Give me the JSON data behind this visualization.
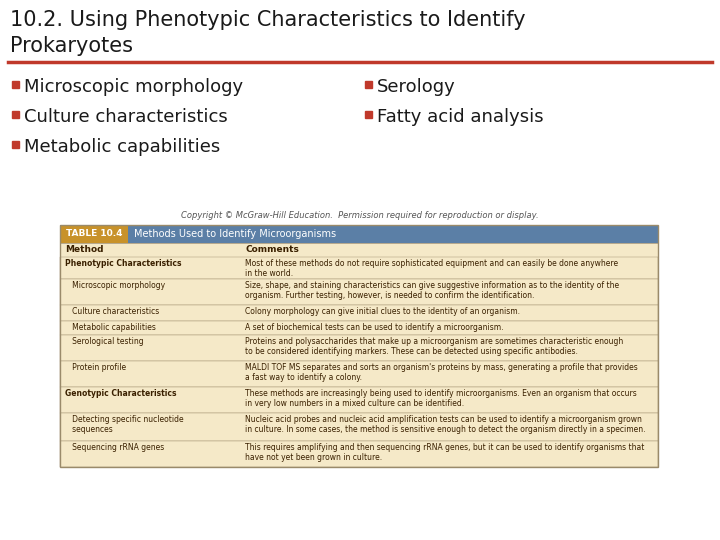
{
  "title_line1": "10.2. Using Phenotypic Characteristics to Identify",
  "title_line2": "Prokaryotes",
  "title_color": "#1a1a1a",
  "title_fontsize": 15,
  "separator_color": "#c0392b",
  "bullet_color": "#c0392b",
  "bullet_items_left": [
    "Microscopic morphology",
    "Culture characteristics",
    "Metabolic capabilities"
  ],
  "bullet_items_right": [
    "Serology",
    "Fatty acid analysis"
  ],
  "bullet_fontsize": 13,
  "bg_color": "#ffffff",
  "table_header_bg": "#5b7fa6",
  "table_label_color": "#c8922a",
  "table_bg": "#f5e9c8",
  "table_border_color": "#9a8a6a",
  "table_title": "TABLE 10.4",
  "table_subtitle": "Methods Used to Identify Microorganisms",
  "table_col_headers": [
    "Method",
    "Comments"
  ],
  "table_rows_method": [
    "Phenotypic Characteristics",
    "   Microscopic morphology",
    "   Culture characteristics",
    "   Metabolic capabilities",
    "   Serological testing",
    "   Protein profile",
    "Genotypic Characteristics",
    "   Detecting specific nucleotide\n   sequences",
    "   Sequencing rRNA genes"
  ],
  "table_rows_comment": [
    "Most of these methods do not require sophisticated equipment and can easily be done anywhere\nin the world.",
    "Size, shape, and staining characteristics can give suggestive information as to the identity of the\norganism. Further testing, however, is needed to confirm the identification.",
    "Colony morphology can give initial clues to the identity of an organism.",
    "A set of biochemical tests can be used to identify a microorganism.",
    "Proteins and polysaccharides that make up a microorganism are sometimes characteristic enough\nto be considered identifying markers. These can be detected using specific antibodies.",
    "MALDI TOF MS separates and sorts an organism's proteins by mass, generating a profile that provides\na fast way to identify a colony.",
    "These methods are increasingly being used to identify microorganisms. Even an organism that occurs\nin very low numbers in a mixed culture can be identified.",
    "Nucleic acid probes and nucleic acid amplification tests can be used to identify a microorganism grown\nin culture. In some cases, the method is sensitive enough to detect the organism directly in a specimen.",
    "This requires amplifying and then sequencing rRNA genes, but it can be used to identify organisms that\nhave not yet been grown in culture."
  ],
  "copyright_text": "Copyright © McGraw-Hill Education.  Permission required for reproduction or display.",
  "copyright_fontsize": 6,
  "copyright_color": "#555555"
}
